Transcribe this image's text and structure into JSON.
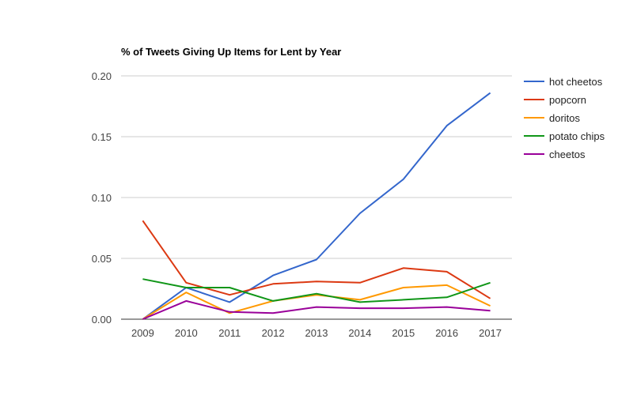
{
  "chart_data": {
    "type": "line",
    "title": "% of Tweets Giving Up Items for Lent by Year",
    "xlabel": "",
    "ylabel": "",
    "x": [
      "2009",
      "2010",
      "2011",
      "2012",
      "2013",
      "2014",
      "2015",
      "2016",
      "2017"
    ],
    "ylim": [
      0,
      0.2
    ],
    "yticks": [
      "0.00",
      "0.05",
      "0.10",
      "0.15",
      "0.20"
    ],
    "grid": true,
    "legend_position": "right",
    "series": [
      {
        "name": "hot cheetos",
        "color": "#3366cc",
        "values": [
          0.0,
          0.026,
          0.014,
          0.036,
          0.049,
          0.087,
          0.115,
          0.159,
          0.186
        ]
      },
      {
        "name": "popcorn",
        "color": "#dc3912",
        "values": [
          0.081,
          0.03,
          0.02,
          0.029,
          0.031,
          0.03,
          0.042,
          0.039,
          0.017
        ]
      },
      {
        "name": "doritos",
        "color": "#ff9900",
        "values": [
          0.0,
          0.022,
          0.005,
          0.015,
          0.02,
          0.016,
          0.026,
          0.028,
          0.011
        ]
      },
      {
        "name": "potato chips",
        "color": "#109618",
        "values": [
          0.033,
          0.026,
          0.026,
          0.015,
          0.021,
          0.014,
          0.016,
          0.018,
          0.03
        ]
      },
      {
        "name": "cheetos",
        "color": "#990099",
        "values": [
          0.0,
          0.015,
          0.006,
          0.005,
          0.01,
          0.009,
          0.009,
          0.01,
          0.007
        ]
      }
    ]
  }
}
